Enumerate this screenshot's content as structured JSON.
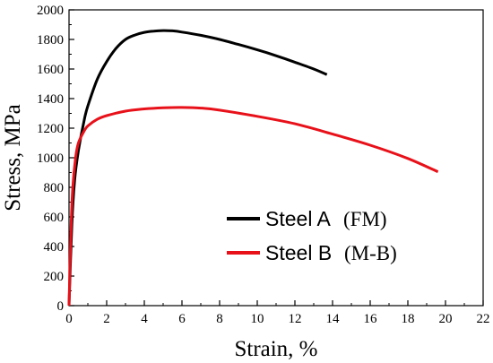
{
  "chart_data": {
    "type": "line",
    "title": "",
    "xlabel": "Strain, %",
    "ylabel": "Stress, MPa",
    "xlim": [
      0,
      22
    ],
    "ylim": [
      0,
      2000
    ],
    "xticks": [
      0,
      2,
      4,
      6,
      8,
      10,
      12,
      14,
      16,
      18,
      20,
      22
    ],
    "yticks": [
      0,
      200,
      400,
      600,
      800,
      1000,
      1200,
      1400,
      1600,
      1800,
      2000
    ],
    "grid": false,
    "legend_position": "center-right",
    "series": [
      {
        "name": "Steel A",
        "annotation": "(FM)",
        "color": "#000000",
        "x": [
          0,
          0.15,
          0.3,
          0.5,
          0.8,
          1.0,
          1.5,
          2.0,
          2.5,
          3.0,
          3.5,
          4.0,
          4.5,
          5.0,
          5.5,
          6.0,
          7.0,
          8.0,
          9.0,
          10.0,
          11.0,
          12.0,
          13.0,
          13.7
        ],
        "y": [
          0,
          550,
          850,
          1050,
          1250,
          1350,
          1530,
          1650,
          1740,
          1800,
          1830,
          1848,
          1856,
          1860,
          1858,
          1850,
          1828,
          1800,
          1766,
          1730,
          1690,
          1646,
          1600,
          1562
        ]
      },
      {
        "name": "Steel B",
        "annotation": "(M-B)",
        "color": "#e8111a",
        "x": [
          0,
          0.1,
          0.2,
          0.35,
          0.5,
          0.8,
          1.0,
          1.5,
          2.0,
          3.0,
          4.0,
          5.0,
          6.0,
          7.0,
          8.0,
          10.0,
          12.0,
          14.0,
          16.0,
          18.0,
          19.6
        ],
        "y": [
          0,
          500,
          800,
          1000,
          1100,
          1180,
          1215,
          1260,
          1285,
          1315,
          1330,
          1338,
          1340,
          1336,
          1322,
          1280,
          1230,
          1160,
          1085,
          995,
          905
        ]
      }
    ]
  }
}
